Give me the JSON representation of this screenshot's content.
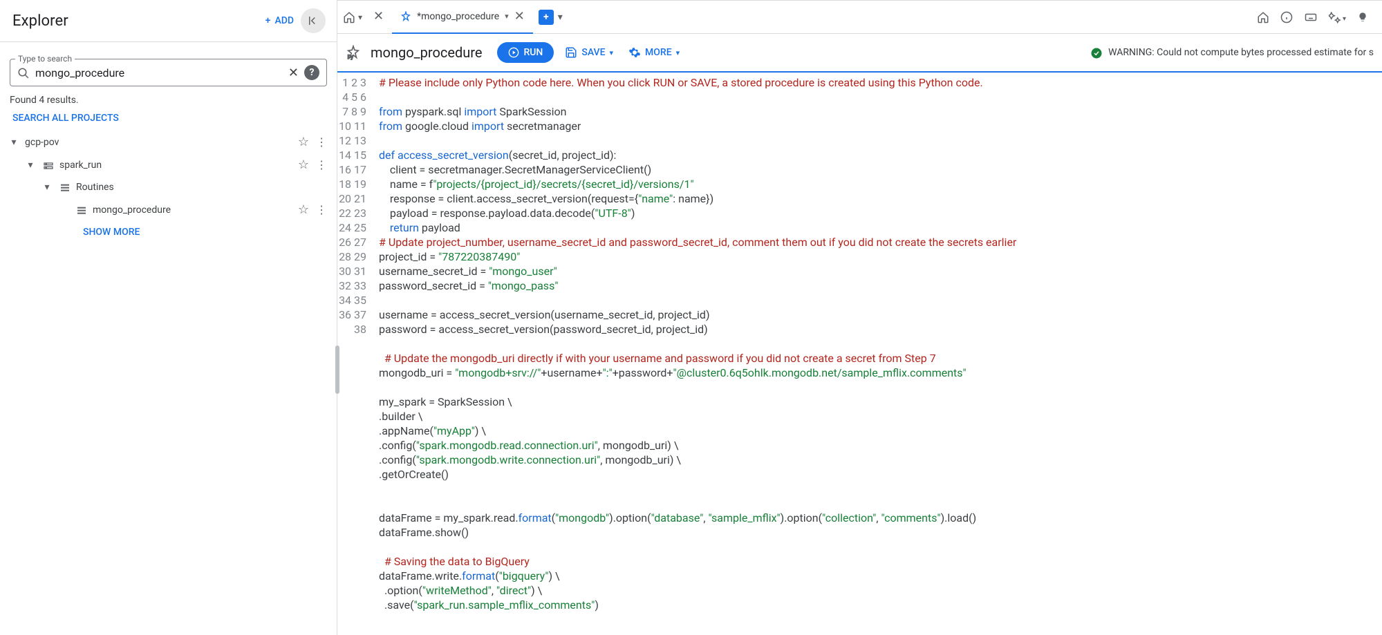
{
  "sidebar": {
    "title": "Explorer",
    "add_label": "ADD",
    "search_label": "Type to search",
    "search_value": "mongo_procedure",
    "results_text": "Found 4 results.",
    "search_all_label": "SEARCH ALL PROJECTS",
    "show_more_label": "SHOW MORE",
    "tree": {
      "project": "gcp-pov",
      "dataset": "spark_run",
      "group": "Routines",
      "item": "mongo_procedure"
    }
  },
  "tabs": {
    "active": "*mongo_procedure"
  },
  "toolbar": {
    "title": "mongo_procedure",
    "run_label": "RUN",
    "save_label": "SAVE",
    "more_label": "MORE",
    "warning": "WARNING: Could not compute bytes processed estimate for s"
  },
  "editor": {
    "line_count": 38,
    "code_html": "<span class='c-cm'># Please include only Python code here. When you click RUN or SAVE, a stored procedure is created using this Python code.</span>\n\n<span class='c-kw'>from</span> pyspark.sql <span class='c-kw'>import</span> SparkSession\n<span class='c-kw'>from</span> google.cloud <span class='c-kw'>import</span> secretmanager\n\n<span class='c-kw'>def</span> <span class='c-fn'>access_secret_version</span>(secret_id, project_id):\n    client = secretmanager.SecretManagerServiceClient()\n    name = f<span class='c-str'>\"projects/{project_id}/secrets/{secret_id}/versions/1\"</span>\n    response = client.access_secret_version(request={<span class='c-str'>\"name\"</span>: name})\n    payload = response.payload.data.decode(<span class='c-str'>\"UTF-8\"</span>)\n    <span class='c-kw'>return</span> payload\n<span class='c-cm'># Update project_number, username_secret_id and password_secret_id, comment them out if you did not create the secrets earlier</span>\nproject_id = <span class='c-str'>\"787220387490\"</span>\nusername_secret_id = <span class='c-str'>\"mongo_user\"</span>\npassword_secret_id = <span class='c-str'>\"mongo_pass\"</span>\n\nusername = access_secret_version(username_secret_id, project_id)\npassword = access_secret_version(password_secret_id, project_id)\n\n  <span class='c-cm'># Update the mongodb_uri directly if with your username and password if you did not create a secret from Step 7</span>\nmongodb_uri = <span class='c-str'>\"mongodb+srv://\"</span>+username+<span class='c-str'>\":\"</span>+password+<span class='c-str'>\"@cluster0.6q5ohlk.mongodb.net/sample_mflix.comments\"</span>\n\nmy_spark = SparkSession \\\n.builder \\\n.appName(<span class='c-str'>\"myApp\"</span>) \\\n.config(<span class='c-str'>\"spark.mongodb.read.connection.uri\"</span>, mongodb_uri) \\\n.config(<span class='c-str'>\"spark.mongodb.write.connection.uri\"</span>, mongodb_uri) \\\n.getOrCreate()\n\n\ndataFrame = my_spark.read.<span class='c-fn'>format</span>(<span class='c-str'>\"mongodb\"</span>).option(<span class='c-str'>\"database\"</span>, <span class='c-str'>\"sample_mflix\"</span>).option(<span class='c-str'>\"collection\"</span>, <span class='c-str'>\"comments\"</span>).load()\ndataFrame.show()\n\n  <span class='c-cm'># Saving the data to BigQuery</span>\ndataFrame.write.<span class='c-fn'>format</span>(<span class='c-str'>\"bigquery\"</span>) \\\n  .option(<span class='c-str'>\"writeMethod\"</span>, <span class='c-str'>\"direct\"</span>) \\\n  .save(<span class='c-str'>\"spark_run.sample_mflix_comments\"</span>)\n"
  },
  "colors": {
    "primary": "#1a73e8",
    "comment": "#b3261e",
    "keyword": "#1967d2",
    "string": "#188038",
    "text": "#3c4043",
    "border": "#dadce0"
  }
}
